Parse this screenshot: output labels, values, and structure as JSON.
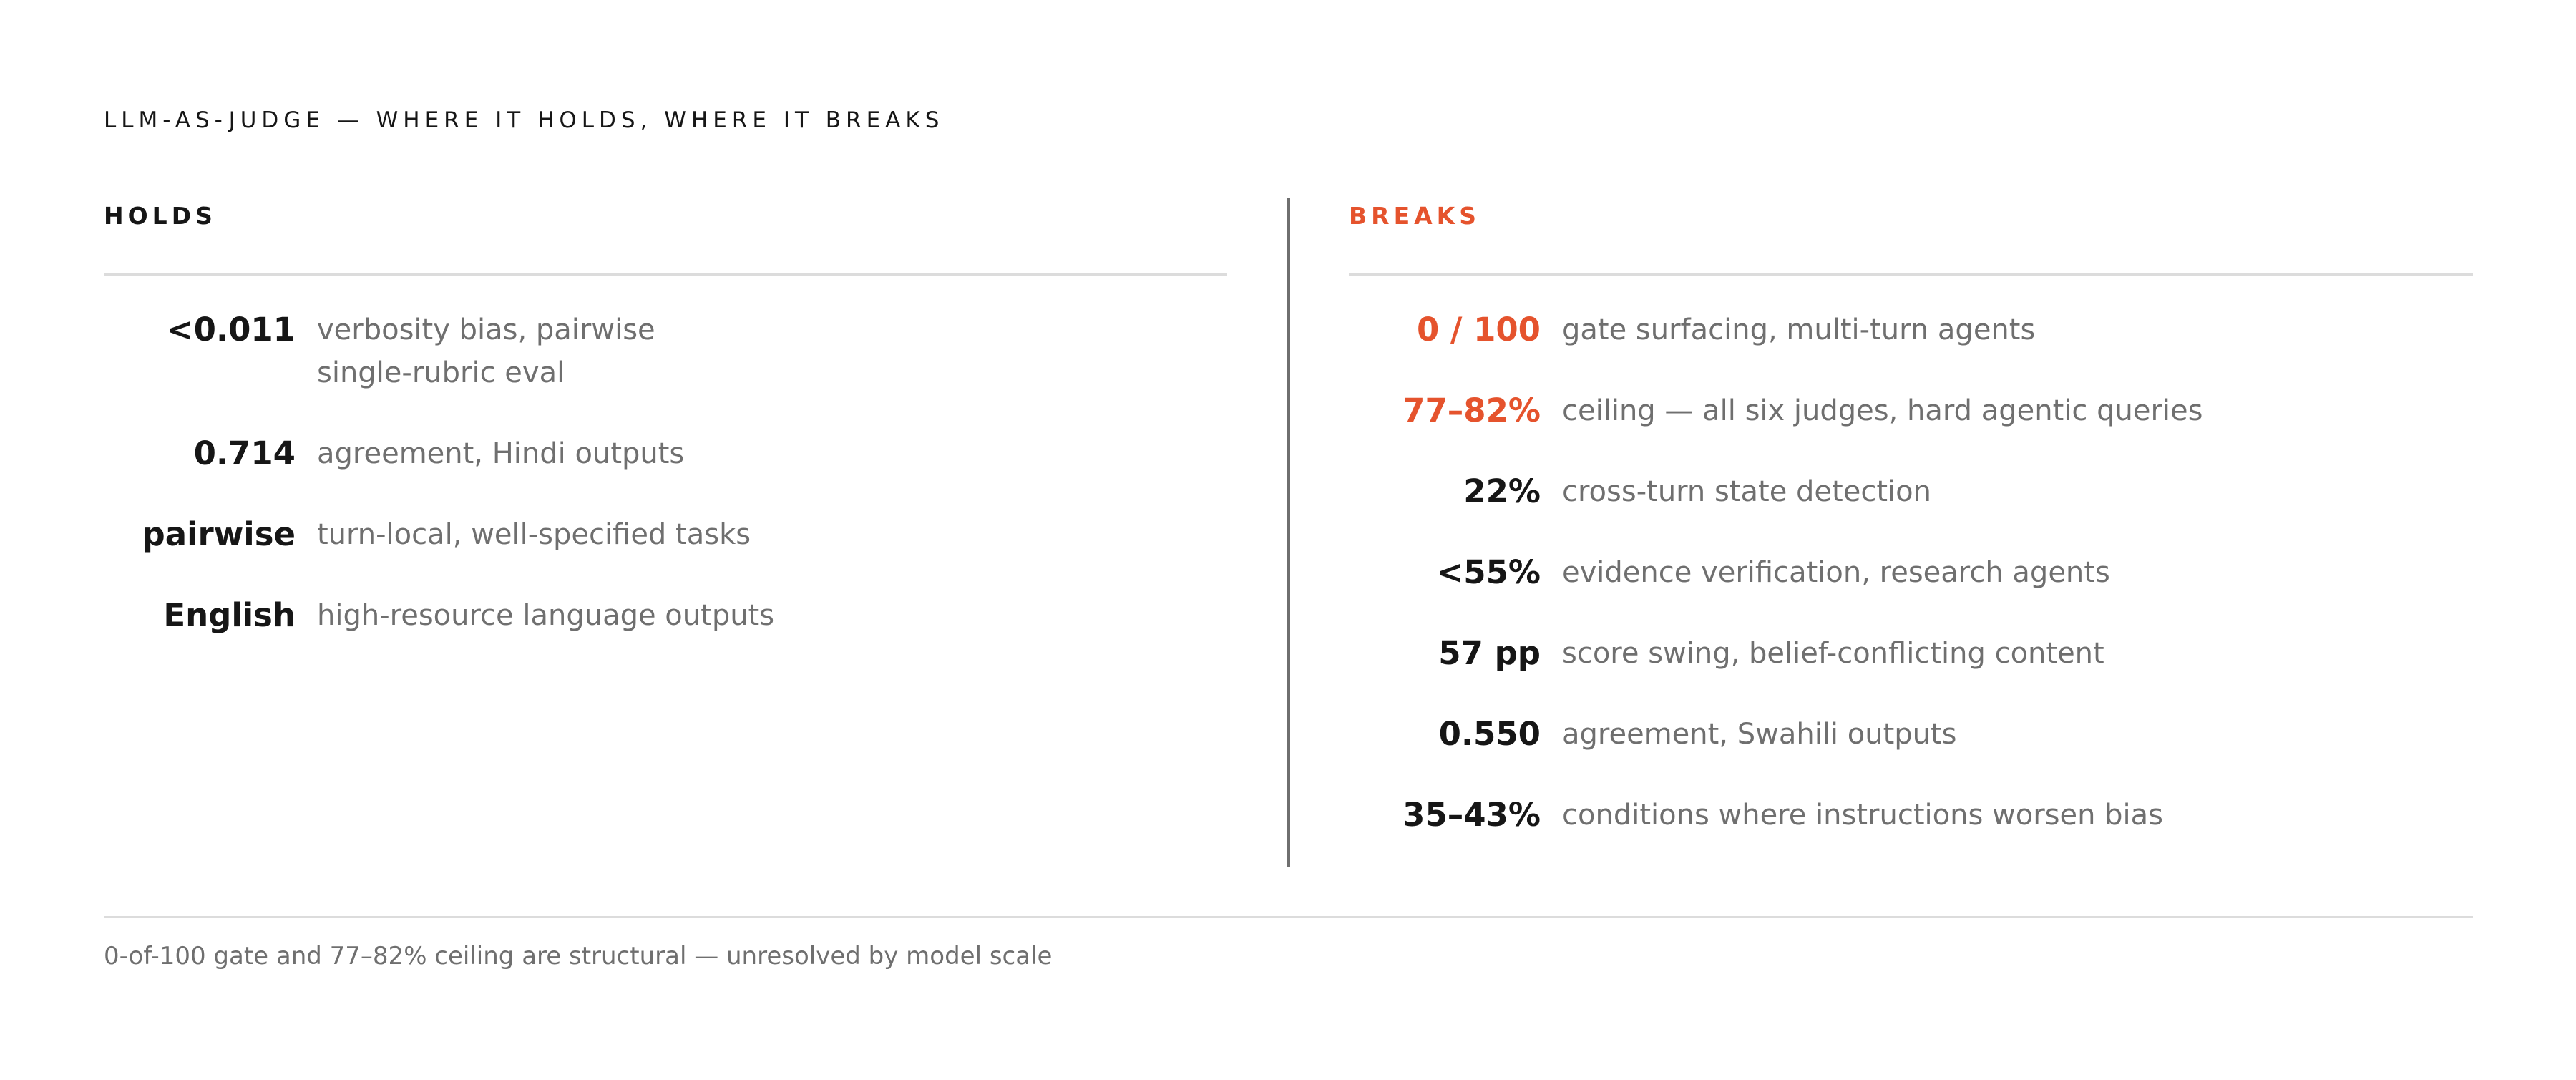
{
  "title": "LLM-AS-JUDGE — WHERE IT HOLDS, WHERE IT BREAKS",
  "holds": {
    "heading": "HOLDS",
    "color": "#161616",
    "rows": [
      {
        "value": "<0.011",
        "text": [
          "verbosity bias, pairwise",
          "single-rubric eval"
        ]
      },
      {
        "value": "0.714",
        "text": [
          "agreement, Hindi outputs"
        ]
      },
      {
        "value": "pairwise",
        "text": [
          "turn-local, well-specified tasks"
        ]
      },
      {
        "value": "English",
        "text": [
          "high-resource language outputs"
        ]
      }
    ]
  },
  "breaks": {
    "heading": "BREAKS",
    "color": "#e5532d",
    "rows": [
      {
        "value": "0 / 100",
        "text": [
          "gate surfacing, multi-turn agents"
        ],
        "color": "#e5532d"
      },
      {
        "value": "77–82%",
        "text": [
          "ceiling — all six judges, hard agentic queries"
        ],
        "color": "#e5532d"
      },
      {
        "value": "22%",
        "text": [
          "cross-turn state detection"
        ]
      },
      {
        "value": "<55%",
        "text": [
          "evidence verification, research agents"
        ]
      },
      {
        "value": "57 pp",
        "text": [
          "score swing, belief-conflicting content"
        ]
      },
      {
        "value": "0.550",
        "text": [
          "agreement, Swahili outputs"
        ]
      },
      {
        "value": "35–43%",
        "text": [
          "conditions where instructions worsen bias"
        ]
      }
    ]
  },
  "footer": "0-of-100 gate and 77–82% ceiling are structural — unresolved by model scale"
}
